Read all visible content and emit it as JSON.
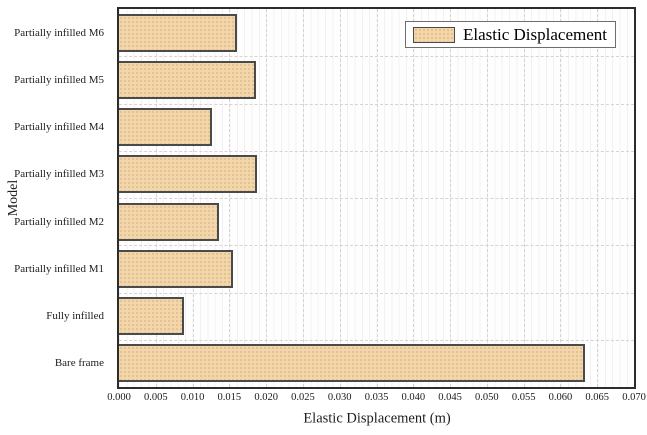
{
  "chart_data": {
    "type": "bar",
    "orientation": "horizontal",
    "title": "",
    "categories": [
      "Partially infilled M6",
      "Partially infilled M5",
      "Partially infilled M4",
      "Partially infilled M3",
      "Partially infilled M2",
      "Partially infilled M1",
      "Fully infilled",
      "Bare frame"
    ],
    "series": [
      {
        "name": "Elastic Displacement",
        "values": [
          0.0161,
          0.0186,
          0.0127,
          0.0188,
          0.0136,
          0.0155,
          0.0088,
          0.0633
        ]
      }
    ],
    "xlabel": "Elastic Displacement (m)",
    "ylabel": "Model",
    "xlim": [
      0.0,
      0.07
    ],
    "xtick_labels": [
      "0.000",
      "0.005",
      "0.010",
      "0.015",
      "0.020",
      "0.025",
      "0.030",
      "0.035",
      "0.040",
      "0.045",
      "0.050",
      "0.055",
      "0.060",
      "0.065",
      "0.070"
    ],
    "grid": true,
    "legend": {
      "label": "Elastic Displacement",
      "position": "upper-right"
    },
    "colors": {
      "bar_fill": "#f3d6aa",
      "bar_edge": "#4a4a4a",
      "frame": "#2c2c2c",
      "grid": "#ddd1cf",
      "text": "#1c1c1c"
    }
  }
}
